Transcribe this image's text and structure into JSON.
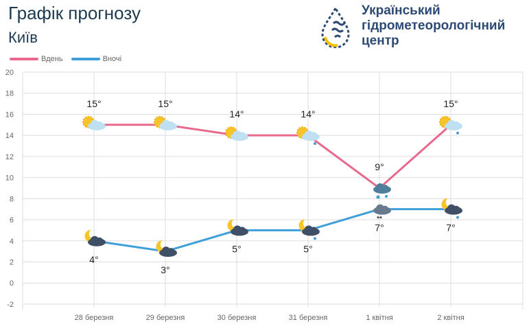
{
  "header": {
    "title": "Графік прогнозу",
    "city": "Київ",
    "org_lines": [
      "Український",
      "гідрометеорологічний",
      "центр"
    ]
  },
  "colors": {
    "day": "#e8698c",
    "night": "#3f9fd8",
    "grid": "#dddddd",
    "title": "#1d3a4f"
  },
  "chart_data": {
    "type": "line",
    "categories": [
      "28 березня",
      "29 березня",
      "30 березня",
      "31 березня",
      "1 квітня",
      "2 квітня"
    ],
    "series": [
      {
        "name": "Вдень",
        "values": [
          15,
          15,
          14,
          14,
          9,
          15
        ],
        "labels": [
          "15°",
          "15°",
          "14°",
          "14°",
          "9°",
          "15°"
        ],
        "icons": [
          "sun-cloud",
          "sun-cloud",
          "sun-cloud",
          "sun-cloud-rain",
          "cloud-rain",
          "sun-cloud-rain"
        ]
      },
      {
        "name": "Вночі",
        "values": [
          4,
          3,
          5,
          5,
          7,
          7
        ],
        "labels": [
          "4°",
          "3°",
          "5°",
          "5°",
          "7°",
          "7°"
        ],
        "icons": [
          "moon-cloud",
          "moon-cloud",
          "moon-cloud",
          "moon-cloud-rain",
          "cloud-drizzle",
          "moon-cloud-rain"
        ]
      }
    ],
    "yticks": [
      20,
      18,
      16,
      14,
      12,
      10,
      8,
      6,
      4,
      2,
      0,
      -2
    ],
    "ylim": [
      -2,
      20
    ],
    "grid": true,
    "legend": "top-left"
  }
}
